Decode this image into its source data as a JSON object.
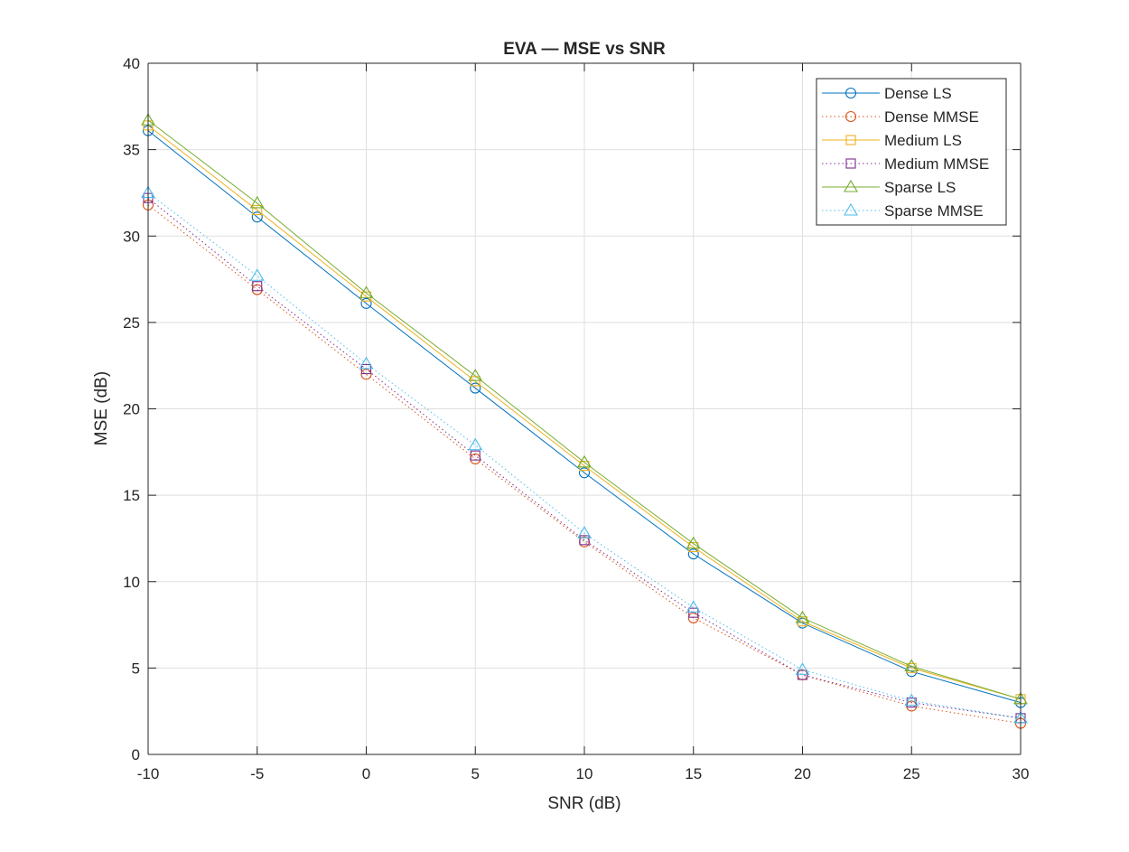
{
  "chart_data": {
    "type": "line",
    "title": "EVA — MSE vs SNR",
    "xlabel": "SNR (dB)",
    "ylabel": "MSE (dB)",
    "xlim": [
      -10,
      30
    ],
    "ylim": [
      0,
      40
    ],
    "xticks": [
      -10,
      -5,
      0,
      5,
      10,
      15,
      20,
      25,
      30
    ],
    "yticks": [
      0,
      5,
      10,
      15,
      20,
      25,
      30,
      35,
      40
    ],
    "grid": true,
    "legend_position": "top-right",
    "x": [
      -10,
      -5,
      0,
      5,
      10,
      15,
      20,
      25,
      30
    ],
    "series": [
      {
        "name": "Dense LS",
        "color": "#0072BD",
        "marker": "circle",
        "line": "solid",
        "values": [
          36.1,
          31.1,
          26.1,
          21.2,
          16.3,
          11.6,
          7.6,
          4.8,
          3.0
        ]
      },
      {
        "name": "Dense MMSE",
        "color": "#D95319",
        "marker": "circle",
        "line": "dotted",
        "values": [
          31.8,
          26.9,
          22.0,
          17.1,
          12.3,
          7.9,
          4.6,
          2.8,
          1.8
        ]
      },
      {
        "name": "Medium LS",
        "color": "#EDB120",
        "marker": "square",
        "line": "solid",
        "values": [
          36.4,
          31.5,
          26.5,
          21.6,
          16.7,
          12.0,
          7.7,
          5.0,
          3.2
        ]
      },
      {
        "name": "Medium MMSE",
        "color": "#7E2F8E",
        "marker": "square",
        "line": "dotted",
        "values": [
          32.2,
          27.1,
          22.3,
          17.3,
          12.4,
          8.2,
          4.6,
          3.0,
          2.1
        ]
      },
      {
        "name": "Sparse LS",
        "color": "#77AC30",
        "marker": "triangle",
        "line": "solid",
        "values": [
          36.7,
          31.9,
          26.7,
          21.9,
          16.9,
          12.2,
          7.9,
          5.1,
          3.2
        ]
      },
      {
        "name": "Sparse MMSE",
        "color": "#4DBEEE",
        "marker": "triangle",
        "line": "dotted",
        "values": [
          32.5,
          27.7,
          22.6,
          17.9,
          12.8,
          8.5,
          4.9,
          3.1,
          2.1
        ]
      }
    ]
  }
}
